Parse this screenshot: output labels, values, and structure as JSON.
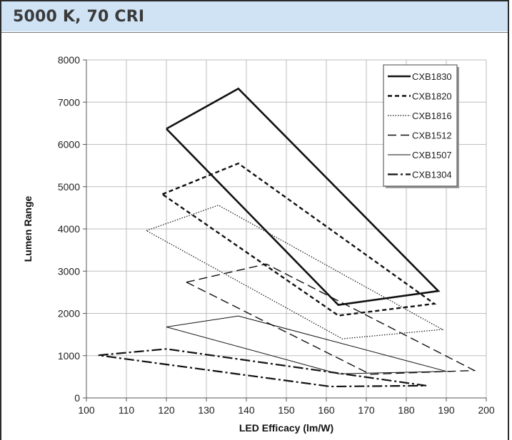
{
  "header": {
    "title": "5000 K, 70 CRI"
  },
  "chart_data": {
    "type": "line",
    "xlabel": "LED Efficacy (lm/W)",
    "ylabel": "Lumen Range",
    "xlim": [
      100,
      200
    ],
    "ylim": [
      0,
      8000
    ],
    "xticks": [
      100,
      110,
      120,
      130,
      140,
      150,
      160,
      170,
      180,
      190,
      200
    ],
    "yticks": [
      0,
      1000,
      2000,
      3000,
      4000,
      5000,
      6000,
      7000,
      8000
    ],
    "grid": true,
    "legend_position": "top-right",
    "series": [
      {
        "name": "CXB1830",
        "style": "solid-thick",
        "points": [
          [
            120,
            6370
          ],
          [
            138,
            7320
          ],
          [
            188,
            2530
          ],
          [
            163,
            2200
          ],
          [
            120,
            6370
          ]
        ]
      },
      {
        "name": "CXB1820",
        "style": "dashed",
        "points": [
          [
            119,
            4820
          ],
          [
            138,
            5550
          ],
          [
            187,
            2230
          ],
          [
            163,
            1950
          ],
          [
            119,
            4820
          ]
        ]
      },
      {
        "name": "CXB1816",
        "style": "dotted",
        "points": [
          [
            115,
            3960
          ],
          [
            133,
            4560
          ],
          [
            189,
            1620
          ],
          [
            164,
            1400
          ],
          [
            115,
            3960
          ]
        ]
      },
      {
        "name": "CXB1512",
        "style": "long-dash",
        "points": [
          [
            125,
            2740
          ],
          [
            145,
            3170
          ],
          [
            197,
            650
          ],
          [
            171,
            560
          ],
          [
            125,
            2740
          ]
        ]
      },
      {
        "name": "CXB1507",
        "style": "thin-solid",
        "points": [
          [
            120,
            1680
          ],
          [
            138,
            1940
          ],
          [
            190,
            630
          ],
          [
            163,
            570
          ],
          [
            120,
            1680
          ]
        ]
      },
      {
        "name": "CXB1304",
        "style": "dash-dot",
        "points": [
          [
            103,
            1010
          ],
          [
            120,
            1160
          ],
          [
            185,
            290
          ],
          [
            161,
            270
          ],
          [
            103,
            1010
          ]
        ]
      }
    ]
  }
}
